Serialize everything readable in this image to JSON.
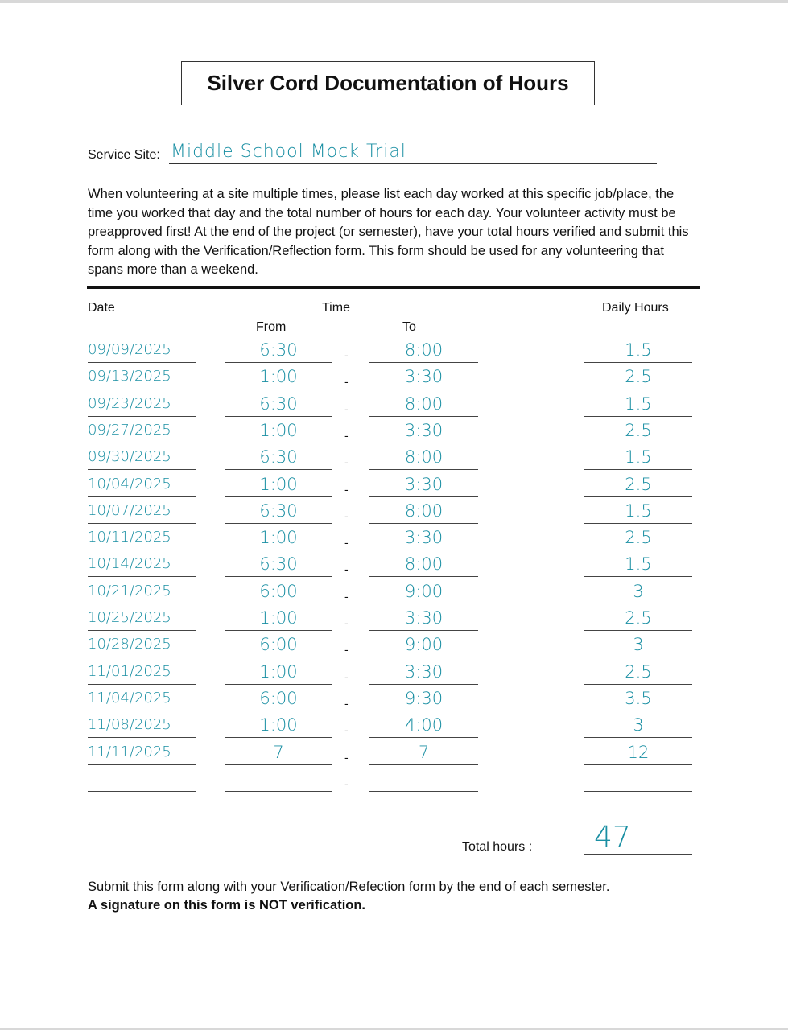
{
  "title": "Silver Cord Documentation of Hours",
  "service_site": {
    "label": "Service Site:",
    "value": "Middle School Mock Trial"
  },
  "instructions": "When volunteering at a site multiple times, please list each day worked at this specific job/place, the time you worked that day and the total number of hours for each day. Your volunteer activity must be preapproved first!  At the end of the project (or semester), have your total hours verified and submit this form along with the Verification/Reflection form.  This form should be used for any volunteering that spans more than a weekend.",
  "table": {
    "headers": {
      "date": "Date",
      "time": "Time",
      "from": "From",
      "to": "To",
      "daily_hours": "Daily Hours"
    },
    "separator": "-",
    "rows": [
      {
        "date": "09/09/2025",
        "from": "6:30",
        "to": "8:00",
        "hours": "1.5"
      },
      {
        "date": "09/13/2025",
        "from": "1:00",
        "to": "3:30",
        "hours": "2.5"
      },
      {
        "date": "09/23/2025",
        "from": "6:30",
        "to": "8:00",
        "hours": "1.5"
      },
      {
        "date": "09/27/2025",
        "from": "1:00",
        "to": "3:30",
        "hours": "2.5"
      },
      {
        "date": "09/30/2025",
        "from": "6:30",
        "to": "8:00",
        "hours": "1.5"
      },
      {
        "date": "10/04/2025",
        "from": "1:00",
        "to": "3:30",
        "hours": "2.5"
      },
      {
        "date": "10/07/2025",
        "from": "6:30",
        "to": "8:00",
        "hours": "1.5"
      },
      {
        "date": "10/11/2025",
        "from": "1:00",
        "to": "3:30",
        "hours": "2.5"
      },
      {
        "date": "10/14/2025",
        "from": "6:30",
        "to": "8:00",
        "hours": "1.5"
      },
      {
        "date": "10/21/2025",
        "from": "6:00",
        "to": "9:00",
        "hours": "3"
      },
      {
        "date": "10/25/2025",
        "from": "1:00",
        "to": "3:30",
        "hours": "2.5"
      },
      {
        "date": "10/28/2025",
        "from": "6:00",
        "to": "9:00",
        "hours": "3"
      },
      {
        "date": "11/01/2025",
        "from": "1:00",
        "to": "3:30",
        "hours": "2.5"
      },
      {
        "date": "11/04/2025",
        "from": "6:00",
        "to": "9:30",
        "hours": "3.5"
      },
      {
        "date": "11/08/2025",
        "from": "1:00",
        "to": "4:00",
        "hours": "3"
      },
      {
        "date": "11/11/2025",
        "from": "7",
        "to": "7",
        "hours": "12"
      },
      {
        "date": "",
        "from": "",
        "to": "",
        "hours": ""
      }
    ]
  },
  "total": {
    "label": "Total hours :",
    "value": "47"
  },
  "footer": {
    "line1": "Submit this form along with your Verification/Refection form by the end of each semester.",
    "line2": "A signature on this form is NOT verification."
  },
  "colors": {
    "handwriting": "#1a8fa3"
  }
}
